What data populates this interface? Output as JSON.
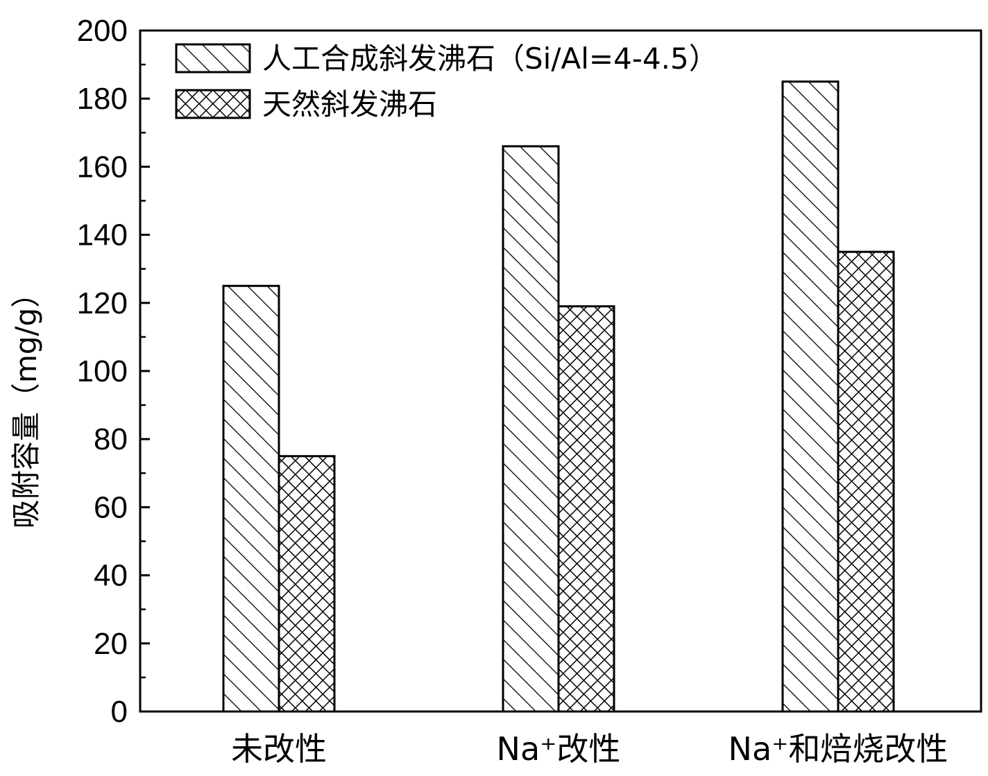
{
  "chart_data": {
    "type": "bar",
    "categories": [
      "未改性",
      "Na⁺改性",
      "Na⁺和焙烧改性"
    ],
    "series": [
      {
        "name": "人工合成斜发沸石（Si/Al=4-4.5）",
        "pattern": "diagonal-hatch",
        "values": [
          125,
          166,
          185
        ]
      },
      {
        "name": "天然斜发沸石",
        "pattern": "cross-hatch",
        "values": [
          75,
          119,
          135
        ]
      }
    ],
    "title": "",
    "xlabel": "",
    "ylabel": "吸附容量（mg/g）",
    "ylim": [
      0,
      200
    ],
    "yticks": [
      0,
      20,
      40,
      60,
      80,
      100,
      120,
      140,
      160,
      180,
      200
    ],
    "grid": false,
    "legend": "top-left",
    "colors": {
      "stroke": "#000000",
      "fill": "#ffffff"
    }
  }
}
